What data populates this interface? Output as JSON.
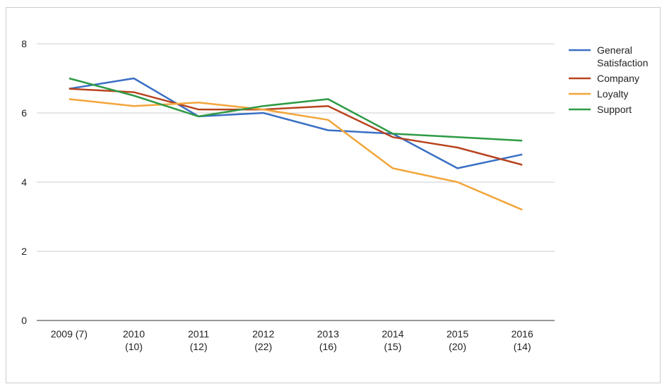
{
  "chart_data": {
    "type": "line",
    "categories": [
      "2009 (7)",
      "2010\n(10)",
      "2011\n(12)",
      "2012\n(22)",
      "2013\n(16)",
      "2014\n(15)",
      "2015\n(20)",
      "2016\n(14)"
    ],
    "series": [
      {
        "name": "General Satisfaction",
        "color": "#3a6fc4",
        "values": [
          6.7,
          7.0,
          5.9,
          6.0,
          5.5,
          5.4,
          4.4,
          4.8
        ]
      },
      {
        "name": "Company",
        "color": "#b8441f",
        "values": [
          6.7,
          6.6,
          6.1,
          6.1,
          6.2,
          5.3,
          5.0,
          4.5
        ]
      },
      {
        "name": "Loyalty",
        "color": "#f2a53a",
        "values": [
          6.4,
          6.2,
          6.3,
          6.1,
          5.8,
          4.4,
          4.0,
          3.2
        ]
      },
      {
        "name": "Support",
        "color": "#2e9a44",
        "values": [
          7.0,
          6.5,
          5.9,
          6.2,
          6.4,
          5.4,
          5.3,
          5.2
        ]
      }
    ],
    "ylim": [
      0,
      8
    ],
    "yticks": [
      0,
      2,
      4,
      6,
      8
    ],
    "grid": true,
    "legend": "right"
  }
}
